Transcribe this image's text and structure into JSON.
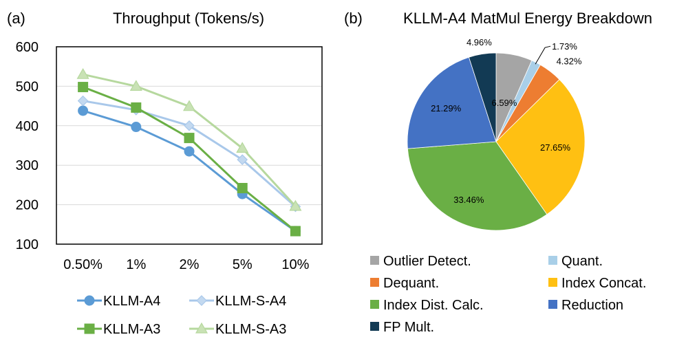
{
  "chart_data": [
    {
      "panel_label": "(a)",
      "type": "line",
      "title": "Throughput (Tokens/s)",
      "xlabel": "",
      "ylabel": "",
      "categories": [
        "0.50%",
        "1%",
        "2%",
        "5%",
        "10%"
      ],
      "ylim": [
        100,
        600
      ],
      "yticks": [
        "100",
        "200",
        "300",
        "400",
        "500",
        "600"
      ],
      "grid": true,
      "legend_position": "bottom",
      "series": [
        {
          "name": "KLLM-A4",
          "values": [
            438,
            397,
            335,
            227,
            133
          ],
          "color": "#5b9bd5",
          "marker": "circle",
          "marker_fill": "#5b9bd5"
        },
        {
          "name": "KLLM-S-A4",
          "values": [
            463,
            440,
            400,
            314,
            195
          ],
          "color": "#a9c8ea",
          "marker": "diamond",
          "marker_fill": "#c3d9f0"
        },
        {
          "name": "KLLM-A3",
          "values": [
            498,
            446,
            369,
            242,
            133
          ],
          "color": "#6aaf45",
          "marker": "square",
          "marker_fill": "#6aaf45"
        },
        {
          "name": "KLLM-S-A3",
          "values": [
            530,
            500,
            449,
            343,
            196
          ],
          "color": "#b6d89e",
          "marker": "triangle",
          "marker_fill": "#c9e2b5"
        }
      ]
    },
    {
      "panel_label": "(b)",
      "type": "pie",
      "title": "KLLM-A4 MatMul Energy Breakdown",
      "legend_position": "bottom",
      "slices": [
        {
          "label": "Outlier Detect.",
          "value": 6.59,
          "display": "6.59%",
          "color": "#a5a5a5"
        },
        {
          "label": "Quant.",
          "value": 1.73,
          "display": "1.73%",
          "color": "#a9cfe8"
        },
        {
          "label": "Dequant.",
          "value": 4.32,
          "display": "4.32%",
          "color": "#ed7d31"
        },
        {
          "label": "Index Concat.",
          "value": 27.65,
          "display": "27.65%",
          "color": "#ffc012"
        },
        {
          "label": "Index Dist. Calc.",
          "value": 33.46,
          "display": "33.46%",
          "color": "#6aaf45"
        },
        {
          "label": "Reduction",
          "value": 21.29,
          "display": "21.29%",
          "color": "#4472c4"
        },
        {
          "label": "FP Mult.",
          "value": 4.96,
          "display": "4.96%",
          "color": "#123a54"
        }
      ]
    }
  ]
}
